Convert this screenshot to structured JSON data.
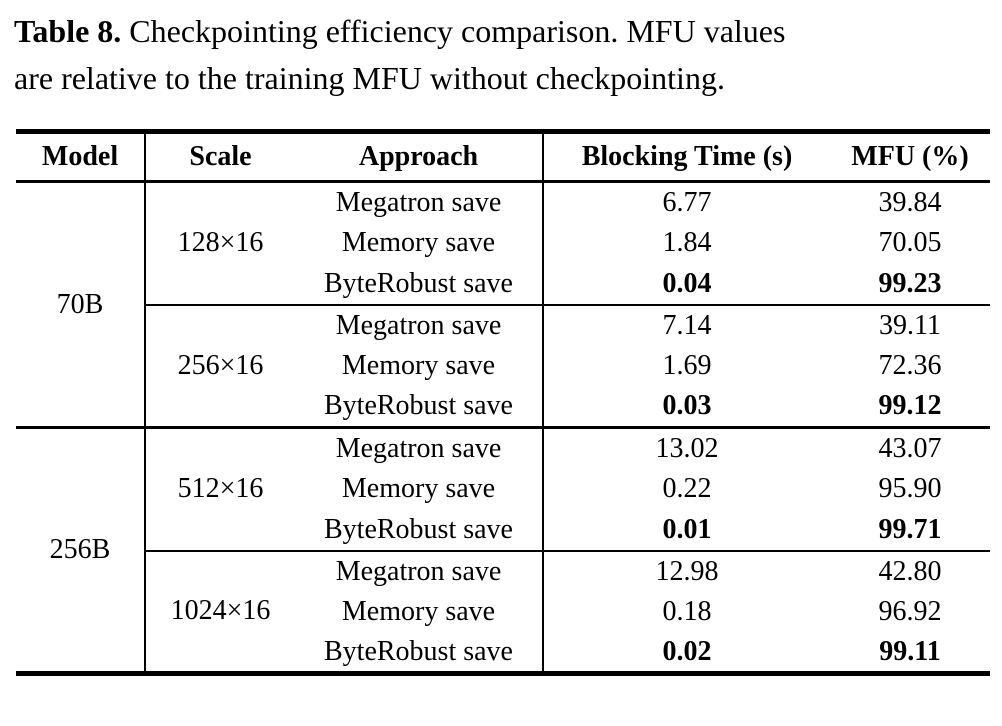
{
  "colors": {
    "text": "#000000",
    "background": "#ffffff",
    "rule": "#000000"
  },
  "caption": {
    "label": "Table 8.",
    "line1": "Checkpointing efficiency comparison. MFU values",
    "line2": "are relative to the training MFU without checkpointing."
  },
  "table": {
    "headers": {
      "model": "Model",
      "scale": "Scale",
      "approach": "Approach",
      "blocking": "Blocking Time (s)",
      "mfu": "MFU (%)"
    },
    "groups": [
      {
        "model": "70B",
        "subgroups": [
          {
            "scale": "128×16",
            "rows": [
              {
                "approach": "Megatron save",
                "blocking": "6.77",
                "mfu": "39.84",
                "bold": false
              },
              {
                "approach": "Memory save",
                "blocking": "1.84",
                "mfu": "70.05",
                "bold": false
              },
              {
                "approach": "ByteRobust save",
                "blocking": "0.04",
                "mfu": "99.23",
                "bold": true
              }
            ]
          },
          {
            "scale": "256×16",
            "rows": [
              {
                "approach": "Megatron save",
                "blocking": "7.14",
                "mfu": "39.11",
                "bold": false
              },
              {
                "approach": "Memory save",
                "blocking": "1.69",
                "mfu": "72.36",
                "bold": false
              },
              {
                "approach": "ByteRobust save",
                "blocking": "0.03",
                "mfu": "99.12",
                "bold": true
              }
            ]
          }
        ]
      },
      {
        "model": "256B",
        "subgroups": [
          {
            "scale": "512×16",
            "rows": [
              {
                "approach": "Megatron save",
                "blocking": "13.02",
                "mfu": "43.07",
                "bold": false
              },
              {
                "approach": "Memory save",
                "blocking": "0.22",
                "mfu": "95.90",
                "bold": false
              },
              {
                "approach": "ByteRobust save",
                "blocking": "0.01",
                "mfu": "99.71",
                "bold": true
              }
            ]
          },
          {
            "scale": "1024×16",
            "rows": [
              {
                "approach": "Megatron save",
                "blocking": "12.98",
                "mfu": "42.80",
                "bold": false
              },
              {
                "approach": "Memory save",
                "blocking": "0.18",
                "mfu": "96.92",
                "bold": false
              },
              {
                "approach": "ByteRobust save",
                "blocking": "0.02",
                "mfu": "99.11",
                "bold": true
              }
            ]
          }
        ]
      }
    ]
  }
}
